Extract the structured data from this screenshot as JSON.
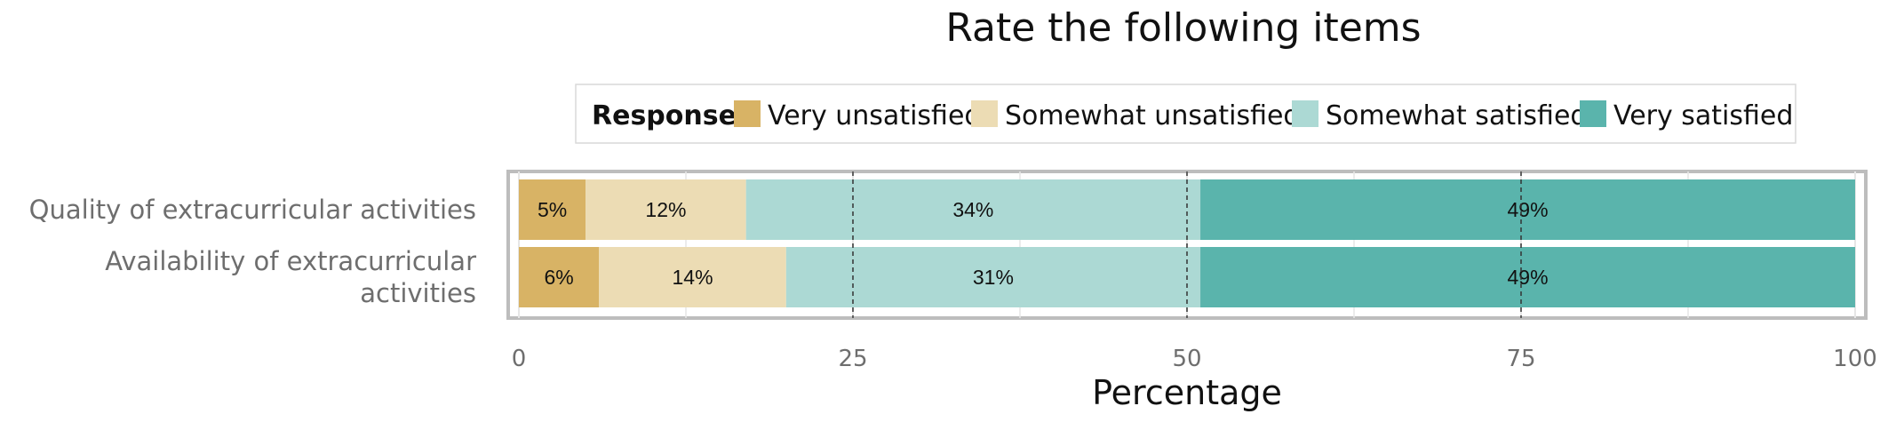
{
  "chart_data": {
    "type": "bar",
    "orientation": "horizontal",
    "stacked": true,
    "title": "Rate the following items",
    "xlabel": "Percentage",
    "ylabel": "",
    "xlim": [
      0,
      100
    ],
    "xticks": [
      "0",
      "25",
      "50",
      "75",
      "100"
    ],
    "grid": true,
    "legend_position": "top",
    "legend_title": "Response",
    "categories": [
      "Quality of extracurricular activities",
      "Availability of extracurricular activities"
    ],
    "series": [
      {
        "name": "Very unsatisfied",
        "color": "#d8b365",
        "values": [
          5,
          6
        ]
      },
      {
        "name": "Somewhat unsatisfied",
        "color": "#ecdcb4",
        "values": [
          12,
          14
        ]
      },
      {
        "name": "Somewhat satisfied",
        "color": "#acd9d4",
        "values": [
          34,
          31
        ]
      },
      {
        "name": "Very satisfied",
        "color": "#5ab4ac",
        "values": [
          49,
          49
        ]
      }
    ],
    "data_labels": [
      [
        "5%",
        "12%",
        "34%",
        "49%"
      ],
      [
        "6%",
        "14%",
        "31%",
        "49%"
      ]
    ]
  }
}
